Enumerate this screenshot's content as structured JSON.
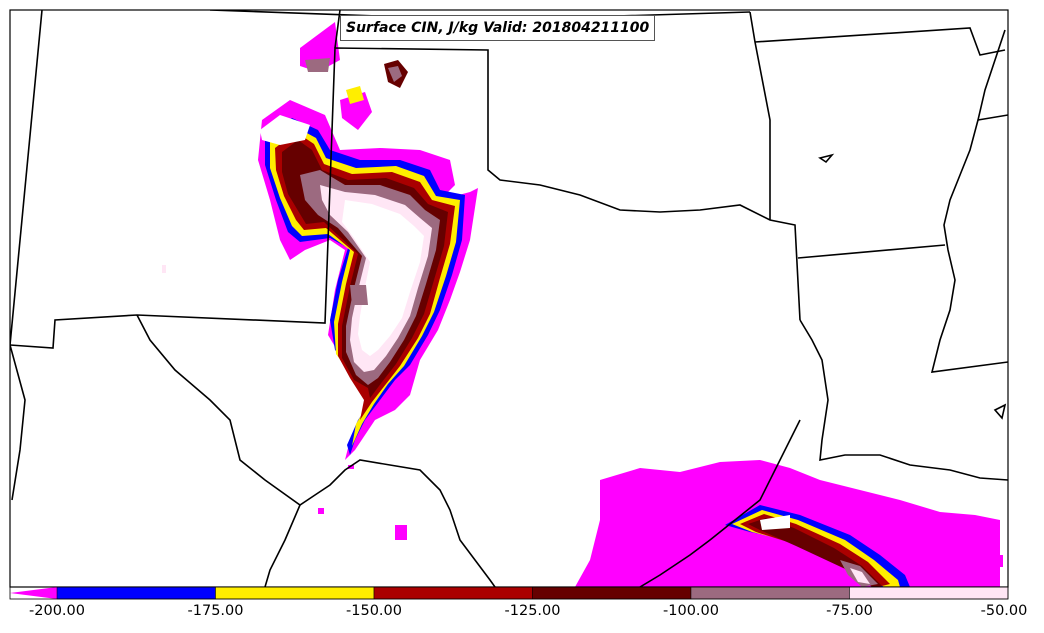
{
  "title": "Surface CIN, J/kg Valid: 201804211100",
  "colorbar": {
    "labels": [
      "-200.00",
      "-175.00",
      "-150.00",
      "-125.00",
      "-100.00",
      "-75.00",
      "-50.00"
    ],
    "colors": [
      "#ff00ff",
      "#0000ff",
      "#ffee00",
      "#aa0000",
      "#660000",
      "#9c6a80",
      "#ffe6f5"
    ]
  }
}
